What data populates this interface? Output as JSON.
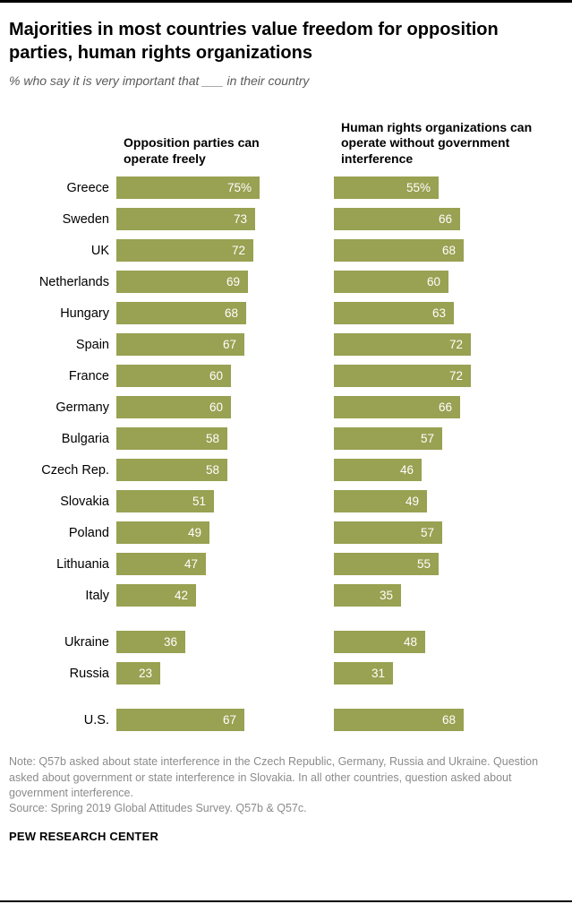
{
  "header": {
    "title": "Majorities in most countries value freedom for opposition parties, human rights organizations",
    "subtitle": "% who say it is very important that ___ in their country"
  },
  "chart_data": {
    "type": "bar",
    "orientation": "horizontal",
    "unit": "percent",
    "xlim": [
      0,
      80
    ],
    "bar_color": "#99a152",
    "value_label_color": "#ffffff",
    "legend_position": "column-headers",
    "series_labels": [
      "Opposition parties can operate freely",
      "Human rights organizations can operate without government interference"
    ],
    "groups": [
      {
        "name": "european-countries",
        "rows": [
          {
            "country": "Greece",
            "opposition": 75,
            "human_rights": 55,
            "suffix": "%"
          },
          {
            "country": "Sweden",
            "opposition": 73,
            "human_rights": 66,
            "suffix": ""
          },
          {
            "country": "UK",
            "opposition": 72,
            "human_rights": 68,
            "suffix": ""
          },
          {
            "country": "Netherlands",
            "opposition": 69,
            "human_rights": 60,
            "suffix": ""
          },
          {
            "country": "Hungary",
            "opposition": 68,
            "human_rights": 63,
            "suffix": ""
          },
          {
            "country": "Spain",
            "opposition": 67,
            "human_rights": 72,
            "suffix": ""
          },
          {
            "country": "France",
            "opposition": 60,
            "human_rights": 72,
            "suffix": ""
          },
          {
            "country": "Germany",
            "opposition": 60,
            "human_rights": 66,
            "suffix": ""
          },
          {
            "country": "Bulgaria",
            "opposition": 58,
            "human_rights": 57,
            "suffix": ""
          },
          {
            "country": "Czech Rep.",
            "opposition": 58,
            "human_rights": 46,
            "suffix": ""
          },
          {
            "country": "Slovakia",
            "opposition": 51,
            "human_rights": 49,
            "suffix": ""
          },
          {
            "country": "Poland",
            "opposition": 49,
            "human_rights": 57,
            "suffix": ""
          },
          {
            "country": "Lithuania",
            "opposition": 47,
            "human_rights": 55,
            "suffix": ""
          },
          {
            "country": "Italy",
            "opposition": 42,
            "human_rights": 35,
            "suffix": ""
          }
        ]
      },
      {
        "name": "ukraine-russia",
        "rows": [
          {
            "country": "Ukraine",
            "opposition": 36,
            "human_rights": 48,
            "suffix": ""
          },
          {
            "country": "Russia",
            "opposition": 23,
            "human_rights": 31,
            "suffix": ""
          }
        ]
      },
      {
        "name": "us",
        "rows": [
          {
            "country": "U.S.",
            "opposition": 67,
            "human_rights": 68,
            "suffix": ""
          }
        ]
      }
    ]
  },
  "footer": {
    "note": "Note: Q57b asked about state interference in the Czech Republic, Germany, Russia and Ukraine. Question asked about government or state interference in Slovakia. In all other countries, question asked about government interference.",
    "source": "Source: Spring 2019 Global Attitudes Survey. Q57b & Q57c.",
    "brand": "PEW RESEARCH CENTER"
  }
}
